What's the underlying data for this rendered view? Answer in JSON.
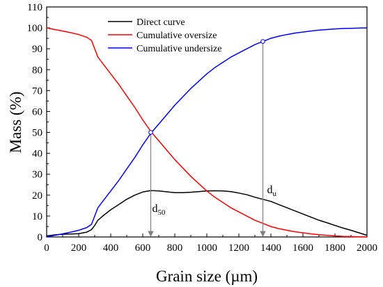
{
  "chart_data": {
    "type": "line",
    "xlabel": "Grain size (µm)",
    "ylabel": "Mass (%)",
    "xlim": [
      0,
      2000
    ],
    "ylim": [
      0,
      110
    ],
    "xticks": [
      0,
      200,
      400,
      600,
      800,
      1000,
      1200,
      1400,
      1600,
      1800,
      2000
    ],
    "yticks": [
      0,
      10,
      20,
      30,
      40,
      50,
      60,
      70,
      80,
      90,
      100,
      110
    ],
    "grid": false,
    "legend_position": "top-center",
    "series": [
      {
        "name": "Direct curve",
        "color": "#000000",
        "points": [
          [
            0,
            0.5
          ],
          [
            50,
            1.0
          ],
          [
            100,
            1.3
          ],
          [
            150,
            1.4
          ],
          [
            200,
            1.6
          ],
          [
            250,
            2.3
          ],
          [
            280,
            3.5
          ],
          [
            300,
            5.5
          ],
          [
            320,
            8.0
          ],
          [
            350,
            10.0
          ],
          [
            400,
            13.0
          ],
          [
            450,
            15.5
          ],
          [
            500,
            18.0
          ],
          [
            550,
            20.0
          ],
          [
            600,
            21.5
          ],
          [
            650,
            22.2
          ],
          [
            700,
            22.0
          ],
          [
            750,
            21.6
          ],
          [
            800,
            21.2
          ],
          [
            850,
            21.2
          ],
          [
            900,
            21.4
          ],
          [
            950,
            21.7
          ],
          [
            1000,
            22.0
          ],
          [
            1050,
            22.1
          ],
          [
            1100,
            22.0
          ],
          [
            1150,
            21.7
          ],
          [
            1200,
            21.0
          ],
          [
            1250,
            20.2
          ],
          [
            1300,
            19.0
          ],
          [
            1350,
            18.0
          ],
          [
            1400,
            17.0
          ],
          [
            1450,
            15.5
          ],
          [
            1500,
            14.0
          ],
          [
            1550,
            12.5
          ],
          [
            1600,
            11.0
          ],
          [
            1650,
            9.5
          ],
          [
            1700,
            8.0
          ],
          [
            1750,
            6.8
          ],
          [
            1800,
            5.5
          ],
          [
            1850,
            4.3
          ],
          [
            1900,
            3.2
          ],
          [
            1950,
            2.0
          ],
          [
            2000,
            0.8
          ]
        ]
      },
      {
        "name": "Cumulative oversize",
        "color": "#ff0000",
        "points": [
          [
            0,
            100
          ],
          [
            50,
            99.2
          ],
          [
            100,
            98.5
          ],
          [
            150,
            97.7
          ],
          [
            200,
            96.8
          ],
          [
            250,
            95.5
          ],
          [
            280,
            94.0
          ],
          [
            300,
            90.0
          ],
          [
            320,
            86.0
          ],
          [
            350,
            83.0
          ],
          [
            400,
            78.0
          ],
          [
            450,
            73.0
          ],
          [
            500,
            67.5
          ],
          [
            550,
            62.0
          ],
          [
            600,
            56.0
          ],
          [
            650,
            50.5
          ],
          [
            700,
            46.0
          ],
          [
            750,
            41.5
          ],
          [
            800,
            37.0
          ],
          [
            850,
            33.0
          ],
          [
            900,
            29.0
          ],
          [
            950,
            25.5
          ],
          [
            1000,
            22.0
          ],
          [
            1050,
            19.0
          ],
          [
            1100,
            16.5
          ],
          [
            1150,
            14.0
          ],
          [
            1200,
            12.0
          ],
          [
            1250,
            10.0
          ],
          [
            1300,
            8.0
          ],
          [
            1350,
            6.5
          ],
          [
            1400,
            5.0
          ],
          [
            1450,
            4.0
          ],
          [
            1500,
            3.2
          ],
          [
            1550,
            2.5
          ],
          [
            1600,
            2.0
          ],
          [
            1650,
            1.5
          ],
          [
            1700,
            1.1
          ],
          [
            1750,
            0.8
          ],
          [
            1800,
            0.5
          ],
          [
            1850,
            0.3
          ],
          [
            1900,
            0.2
          ],
          [
            1950,
            0.1
          ],
          [
            2000,
            0.0
          ]
        ]
      },
      {
        "name": "Cumulative undersize",
        "color": "#0000ff",
        "points": [
          [
            0,
            0
          ],
          [
            50,
            0.8
          ],
          [
            100,
            1.5
          ],
          [
            150,
            2.3
          ],
          [
            200,
            3.2
          ],
          [
            250,
            4.5
          ],
          [
            280,
            6.0
          ],
          [
            300,
            10.0
          ],
          [
            320,
            14.0
          ],
          [
            350,
            17.0
          ],
          [
            400,
            22.0
          ],
          [
            450,
            27.0
          ],
          [
            500,
            32.5
          ],
          [
            550,
            38.0
          ],
          [
            600,
            44.0
          ],
          [
            650,
            49.5
          ],
          [
            700,
            54.0
          ],
          [
            750,
            58.5
          ],
          [
            800,
            63.0
          ],
          [
            850,
            67.0
          ],
          [
            900,
            71.0
          ],
          [
            950,
            74.5
          ],
          [
            1000,
            78.0
          ],
          [
            1050,
            81.0
          ],
          [
            1100,
            83.5
          ],
          [
            1150,
            86.0
          ],
          [
            1200,
            88.0
          ],
          [
            1250,
            90.0
          ],
          [
            1300,
            92.0
          ],
          [
            1350,
            93.5
          ],
          [
            1400,
            95.0
          ],
          [
            1450,
            96.0
          ],
          [
            1500,
            96.8
          ],
          [
            1550,
            97.5
          ],
          [
            1600,
            98.0
          ],
          [
            1650,
            98.5
          ],
          [
            1700,
            98.9
          ],
          [
            1750,
            99.2
          ],
          [
            1800,
            99.5
          ],
          [
            1850,
            99.7
          ],
          [
            1900,
            99.8
          ],
          [
            1950,
            99.9
          ],
          [
            2000,
            100.0
          ]
        ]
      }
    ],
    "markers": [
      {
        "label_main": "d",
        "label_sub": "50",
        "x": 650,
        "y": 50
      },
      {
        "label_main": "d",
        "label_sub": "u",
        "x": 1350,
        "y": 93.5
      }
    ]
  }
}
